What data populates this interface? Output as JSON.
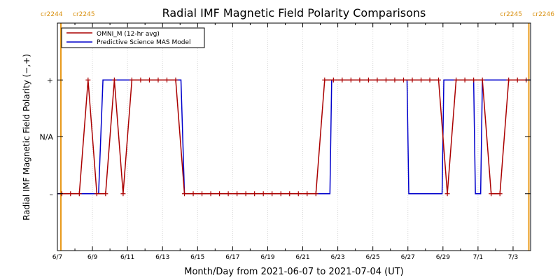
{
  "chart_data": {
    "type": "line",
    "title": "Radial IMF Magnetic Field Polarity Comparisons",
    "xlabel": "Month/Day from 2021-06-07 to 2021-07-04 (UT)",
    "ylabel": "Radial IMF Magnetic Field Polarity (−,+)",
    "xlim": [
      0,
      27
    ],
    "ylim": [
      -2,
      2
    ],
    "x_ticks": [
      {
        "value": 0,
        "label": "6/7"
      },
      {
        "value": 2,
        "label": "6/9"
      },
      {
        "value": 4,
        "label": "6/11"
      },
      {
        "value": 6,
        "label": "6/13"
      },
      {
        "value": 8,
        "label": "6/15"
      },
      {
        "value": 10,
        "label": "6/17"
      },
      {
        "value": 12,
        "label": "6/19"
      },
      {
        "value": 14,
        "label": "6/21"
      },
      {
        "value": 16,
        "label": "6/23"
      },
      {
        "value": 18,
        "label": "6/25"
      },
      {
        "value": 20,
        "label": "6/27"
      },
      {
        "value": 22,
        "label": "6/29"
      },
      {
        "value": 24,
        "label": "7/1"
      },
      {
        "value": 26,
        "label": "7/3"
      }
    ],
    "y_ticks": [
      {
        "value": 1,
        "label": "+"
      },
      {
        "value": 0,
        "label": "N/A"
      },
      {
        "value": -1,
        "label": "–"
      }
    ],
    "carrington_markers": [
      {
        "x": 0.2,
        "left_label": "cr2244",
        "right_label": "cr2245"
      },
      {
        "x": 26.9,
        "left_label": "cr2245",
        "right_label": "cr2246"
      }
    ],
    "legend": {
      "placement": "top-left"
    },
    "series": [
      {
        "name": "OMNI_M (12-hr avg)",
        "color": "#aa0000",
        "marker": "plus",
        "x": [
          0.25,
          0.75,
          1.25,
          1.75,
          2.25,
          2.75,
          3.25,
          3.75,
          4.25,
          4.75,
          5.25,
          5.75,
          6.25,
          6.75,
          7.25,
          7.75,
          8.25,
          8.75,
          9.25,
          9.75,
          10.25,
          10.75,
          11.25,
          11.75,
          12.25,
          12.75,
          13.25,
          13.75,
          14.25,
          14.75,
          15.25,
          15.75,
          16.25,
          16.75,
          17.25,
          17.75,
          18.25,
          18.75,
          19.25,
          19.75,
          20.25,
          20.75,
          21.25,
          21.75,
          22.25,
          22.75,
          23.25,
          23.75,
          24.25,
          24.75,
          25.25,
          25.75,
          26.25,
          26.75
        ],
        "values": [
          -1,
          -1,
          -1,
          1,
          -1,
          -1,
          1,
          -1,
          1,
          1,
          1,
          1,
          1,
          1,
          -1,
          -1,
          -1,
          -1,
          -1,
          -1,
          -1,
          -1,
          -1,
          -1,
          -1,
          -1,
          -1,
          -1,
          -1,
          -1,
          1,
          1,
          1,
          1,
          1,
          1,
          1,
          1,
          1,
          1,
          1,
          1,
          1,
          1,
          -1,
          1,
          1,
          1,
          1,
          -1,
          -1,
          1,
          1,
          1
        ]
      },
      {
        "name": "Predictive Science MAS Model",
        "color": "#0000cc",
        "marker": "none",
        "x": [
          0,
          2.35,
          2.6,
          7.05,
          7.25,
          15.55,
          15.65,
          19.95,
          20.05,
          21.95,
          22.05,
          23.75,
          23.85,
          24.15,
          24.25,
          27
        ],
        "values": [
          -1,
          -1,
          1,
          1,
          -1,
          -1,
          1,
          1,
          -1,
          -1,
          1,
          1,
          -1,
          -1,
          1,
          1
        ]
      }
    ]
  }
}
